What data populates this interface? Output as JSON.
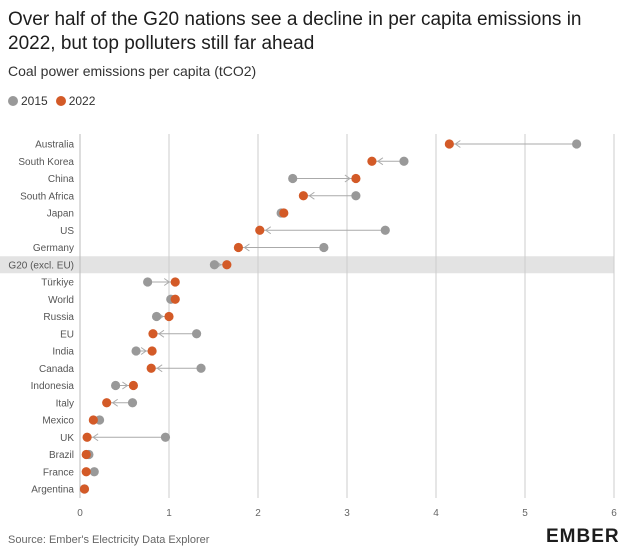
{
  "chart_data": {
    "type": "dot-range",
    "title": "Over half of the G20 nations see a decline in per capita emissions in 2022, but top polluters still far ahead",
    "subtitle": "Coal power emissions per capita (tCO2)",
    "xlim": [
      0,
      6
    ],
    "x_ticks": [
      "0",
      "1",
      "2",
      "3",
      "4",
      "5",
      "6"
    ],
    "grid": "vertical",
    "legend_position": "top-left",
    "series": [
      {
        "name": "2015",
        "color": "#999999"
      },
      {
        "name": "2022",
        "color": "#d35a27"
      }
    ],
    "highlight_category": "G20 (excl. EU)",
    "categories": [
      "Australia",
      "South Korea",
      "China",
      "South Africa",
      "Japan",
      "US",
      "Germany",
      "G20 (excl. EU)",
      "Türkiye",
      "World",
      "Russia",
      "EU",
      "India",
      "Canada",
      "Indonesia",
      "Italy",
      "Mexico",
      "UK",
      "Brazil",
      "France",
      "Argentina"
    ],
    "values_2015": [
      5.58,
      3.64,
      2.39,
      3.1,
      2.26,
      3.43,
      2.74,
      1.51,
      0.76,
      1.02,
      0.86,
      1.31,
      0.63,
      1.36,
      0.4,
      0.59,
      0.22,
      0.96,
      0.1,
      0.16,
      0.05
    ],
    "values_2022": [
      4.15,
      3.28,
      3.1,
      2.51,
      2.29,
      2.02,
      1.78,
      1.65,
      1.07,
      1.07,
      1.0,
      0.82,
      0.81,
      0.8,
      0.6,
      0.3,
      0.15,
      0.08,
      0.07,
      0.07,
      0.05
    ]
  },
  "footer": {
    "source": "Source: Ember's Electricity Data Explorer",
    "logo_text": "EMBER"
  }
}
